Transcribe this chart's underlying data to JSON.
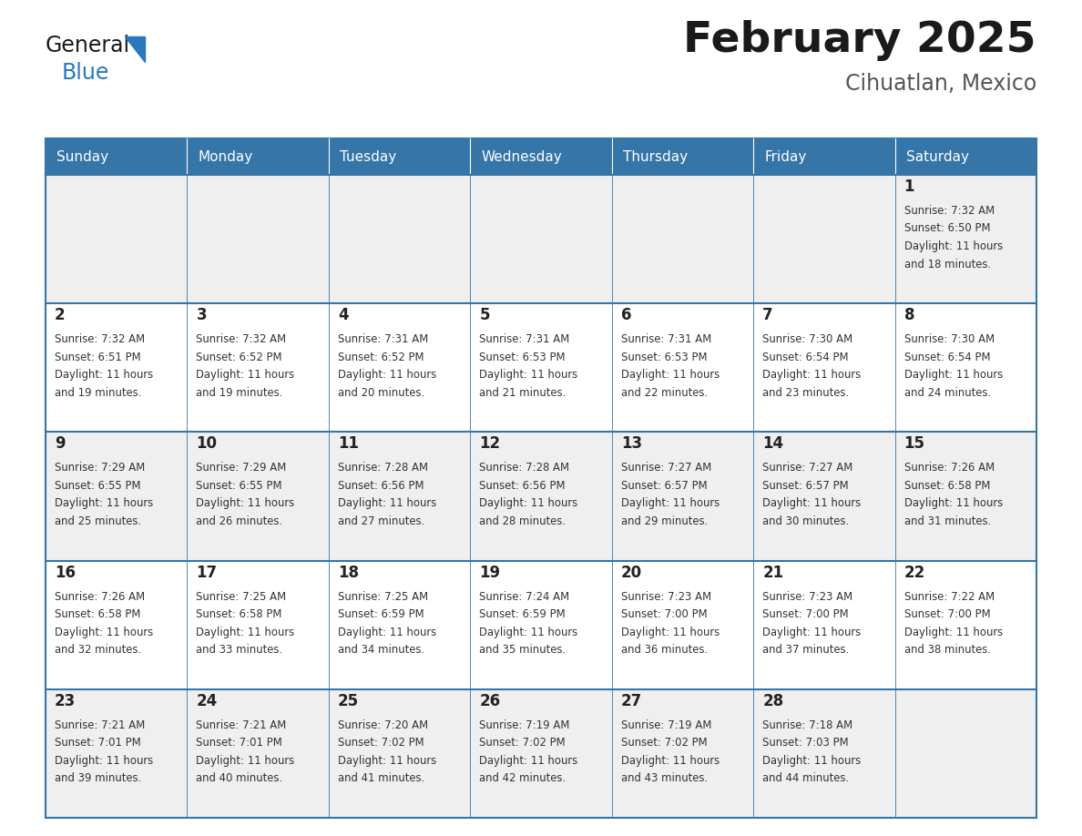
{
  "title": "February 2025",
  "subtitle": "Cihuatlan, Mexico",
  "days_of_week": [
    "Sunday",
    "Monday",
    "Tuesday",
    "Wednesday",
    "Thursday",
    "Friday",
    "Saturday"
  ],
  "header_bg": "#3575a8",
  "header_text": "#ffffff",
  "cell_bg_light": "#efefef",
  "cell_bg_white": "#ffffff",
  "border_color": "#3575a8",
  "day_num_color": "#222222",
  "info_color": "#333333",
  "title_color": "#1a1a1a",
  "subtitle_color": "#555555",
  "logo_black": "#1a1a1a",
  "logo_blue": "#2878be",
  "triangle_color": "#2878be",
  "calendar_data": [
    [
      null,
      null,
      null,
      null,
      null,
      null,
      {
        "day": 1,
        "sunrise": "7:32 AM",
        "sunset": "6:50 PM",
        "daylight": "11 hours and 18 minutes."
      }
    ],
    [
      {
        "day": 2,
        "sunrise": "7:32 AM",
        "sunset": "6:51 PM",
        "daylight": "11 hours and 19 minutes."
      },
      {
        "day": 3,
        "sunrise": "7:32 AM",
        "sunset": "6:52 PM",
        "daylight": "11 hours and 19 minutes."
      },
      {
        "day": 4,
        "sunrise": "7:31 AM",
        "sunset": "6:52 PM",
        "daylight": "11 hours and 20 minutes."
      },
      {
        "day": 5,
        "sunrise": "7:31 AM",
        "sunset": "6:53 PM",
        "daylight": "11 hours and 21 minutes."
      },
      {
        "day": 6,
        "sunrise": "7:31 AM",
        "sunset": "6:53 PM",
        "daylight": "11 hours and 22 minutes."
      },
      {
        "day": 7,
        "sunrise": "7:30 AM",
        "sunset": "6:54 PM",
        "daylight": "11 hours and 23 minutes."
      },
      {
        "day": 8,
        "sunrise": "7:30 AM",
        "sunset": "6:54 PM",
        "daylight": "11 hours and 24 minutes."
      }
    ],
    [
      {
        "day": 9,
        "sunrise": "7:29 AM",
        "sunset": "6:55 PM",
        "daylight": "11 hours and 25 minutes."
      },
      {
        "day": 10,
        "sunrise": "7:29 AM",
        "sunset": "6:55 PM",
        "daylight": "11 hours and 26 minutes."
      },
      {
        "day": 11,
        "sunrise": "7:28 AM",
        "sunset": "6:56 PM",
        "daylight": "11 hours and 27 minutes."
      },
      {
        "day": 12,
        "sunrise": "7:28 AM",
        "sunset": "6:56 PM",
        "daylight": "11 hours and 28 minutes."
      },
      {
        "day": 13,
        "sunrise": "7:27 AM",
        "sunset": "6:57 PM",
        "daylight": "11 hours and 29 minutes."
      },
      {
        "day": 14,
        "sunrise": "7:27 AM",
        "sunset": "6:57 PM",
        "daylight": "11 hours and 30 minutes."
      },
      {
        "day": 15,
        "sunrise": "7:26 AM",
        "sunset": "6:58 PM",
        "daylight": "11 hours and 31 minutes."
      }
    ],
    [
      {
        "day": 16,
        "sunrise": "7:26 AM",
        "sunset": "6:58 PM",
        "daylight": "11 hours and 32 minutes."
      },
      {
        "day": 17,
        "sunrise": "7:25 AM",
        "sunset": "6:58 PM",
        "daylight": "11 hours and 33 minutes."
      },
      {
        "day": 18,
        "sunrise": "7:25 AM",
        "sunset": "6:59 PM",
        "daylight": "11 hours and 34 minutes."
      },
      {
        "day": 19,
        "sunrise": "7:24 AM",
        "sunset": "6:59 PM",
        "daylight": "11 hours and 35 minutes."
      },
      {
        "day": 20,
        "sunrise": "7:23 AM",
        "sunset": "7:00 PM",
        "daylight": "11 hours and 36 minutes."
      },
      {
        "day": 21,
        "sunrise": "7:23 AM",
        "sunset": "7:00 PM",
        "daylight": "11 hours and 37 minutes."
      },
      {
        "day": 22,
        "sunrise": "7:22 AM",
        "sunset": "7:00 PM",
        "daylight": "11 hours and 38 minutes."
      }
    ],
    [
      {
        "day": 23,
        "sunrise": "7:21 AM",
        "sunset": "7:01 PM",
        "daylight": "11 hours and 39 minutes."
      },
      {
        "day": 24,
        "sunrise": "7:21 AM",
        "sunset": "7:01 PM",
        "daylight": "11 hours and 40 minutes."
      },
      {
        "day": 25,
        "sunrise": "7:20 AM",
        "sunset": "7:02 PM",
        "daylight": "11 hours and 41 minutes."
      },
      {
        "day": 26,
        "sunrise": "7:19 AM",
        "sunset": "7:02 PM",
        "daylight": "11 hours and 42 minutes."
      },
      {
        "day": 27,
        "sunrise": "7:19 AM",
        "sunset": "7:02 PM",
        "daylight": "11 hours and 43 minutes."
      },
      {
        "day": 28,
        "sunrise": "7:18 AM",
        "sunset": "7:03 PM",
        "daylight": "11 hours and 44 minutes."
      },
      null
    ]
  ]
}
